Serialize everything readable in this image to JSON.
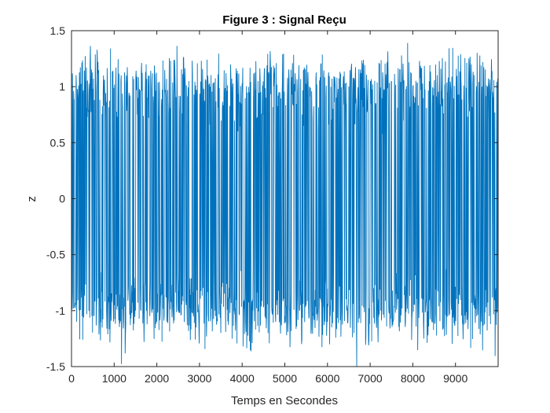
{
  "chart_data": {
    "type": "line",
    "title": "Figure 3 : Signal Reçu",
    "xlabel": "Temps en Secondes",
    "ylabel": "z",
    "xlim": [
      0,
      10000
    ],
    "ylim": [
      -1.5,
      1.5
    ],
    "xticks": [
      0,
      1000,
      2000,
      3000,
      4000,
      5000,
      6000,
      7000,
      8000,
      9000
    ],
    "xtick_labels": [
      "0",
      "1000",
      "2000",
      "3000",
      "4000",
      "5000",
      "6000",
      "7000",
      "8000",
      "9000"
    ],
    "yticks": [
      -1.5,
      -1,
      -0.5,
      0,
      0.5,
      1,
      1.5
    ],
    "ytick_labels": [
      "-1.5",
      "-1",
      "-0.5",
      "0",
      "0.5",
      "1",
      "1.5"
    ],
    "grid": false,
    "series": [
      {
        "color": "#0072BD",
        "description": "dense noisy binary signal, ±1 levels with additive noise",
        "x": [
          0,
          250,
          500,
          750,
          1000,
          1250,
          1500,
          1750,
          2000,
          2250,
          2500,
          2750,
          3000,
          3250,
          3500,
          3750,
          4000,
          4250,
          4500,
          4750,
          5000,
          5250,
          5500,
          5750,
          6000,
          6250,
          6500,
          6750,
          7000,
          7250,
          7500,
          7750,
          8000,
          8250,
          8500,
          8750,
          9000,
          9250,
          9500,
          9750,
          10000
        ],
        "y": [
          1.0,
          -1.05,
          0.98,
          1.1,
          -0.95,
          1.02,
          -1.0,
          1.2,
          -1.1,
          0.97,
          -1.0,
          1.05,
          -0.98,
          1.0,
          -1.2,
          0.95,
          1.03,
          -1.0,
          -0.97,
          1.1,
          -1.05,
          1.0,
          -0.95,
          1.02,
          -1.1,
          0.98,
          1.0,
          -1.03,
          0.96,
          -1.0,
          1.05,
          -0.98,
          1.0,
          -1.1,
          0.97,
          1.02,
          -1.0,
          0.99,
          -1.05,
          1.0,
          -0.97
        ]
      }
    ]
  }
}
